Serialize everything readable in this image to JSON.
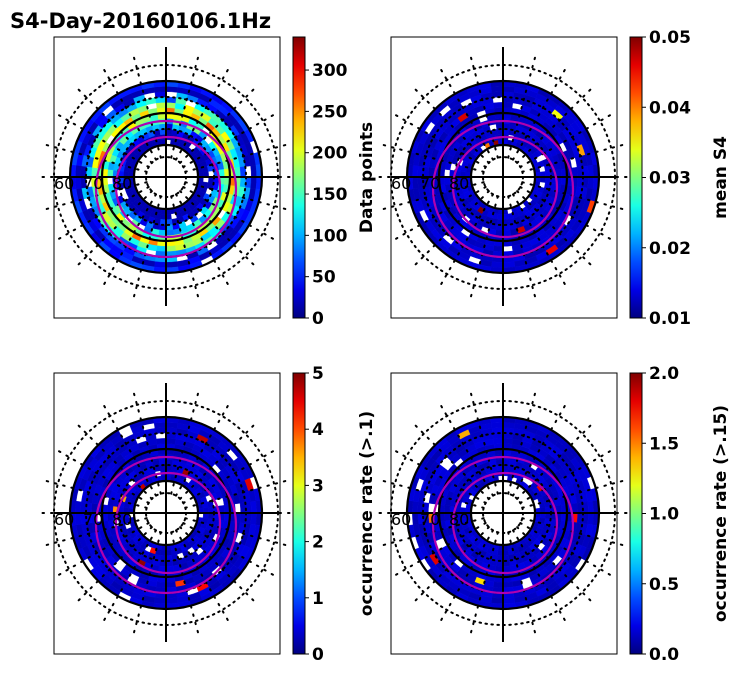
{
  "chart_data": {
    "type": "heatmap",
    "title": "S4-Day-20160106.1Hz",
    "projection": "polar (magnetic latitude)",
    "latitude_labels": [
      "60",
      "70",
      "80"
    ],
    "panels": [
      {
        "name": "data-points",
        "colorbar_label": "Data points",
        "range": [
          0,
          340
        ],
        "ticks": [
          "0",
          "50",
          "100",
          "150",
          "200",
          "250",
          "300"
        ],
        "tick_values": [
          0,
          50,
          100,
          150,
          200,
          250,
          300
        ]
      },
      {
        "name": "mean-s4",
        "colorbar_label": "mean S4",
        "range": [
          0.01,
          0.05
        ],
        "ticks": [
          "0.01",
          "0.02",
          "0.03",
          "0.04",
          "0.05"
        ],
        "tick_values": [
          0.01,
          0.02,
          0.03,
          0.04,
          0.05
        ]
      },
      {
        "name": "occurrence-rate-01",
        "colorbar_label": "occurrence rate (>.1)",
        "range": [
          0,
          5
        ],
        "ticks": [
          "0",
          "1",
          "2",
          "3",
          "4",
          "5"
        ],
        "tick_values": [
          0,
          1,
          2,
          3,
          4,
          5
        ]
      },
      {
        "name": "occurrence-rate-015",
        "colorbar_label": "occurrence rate (>.15)",
        "range": [
          0,
          2.0
        ],
        "ticks": [
          "0.0",
          "0.5",
          "1.0",
          "1.5",
          "2.0"
        ],
        "tick_values": [
          0,
          0.5,
          1.0,
          1.5,
          2.0
        ]
      }
    ],
    "colormap": "jet",
    "colors": {
      "oval": "#b000b0",
      "grid": "#000000"
    }
  }
}
